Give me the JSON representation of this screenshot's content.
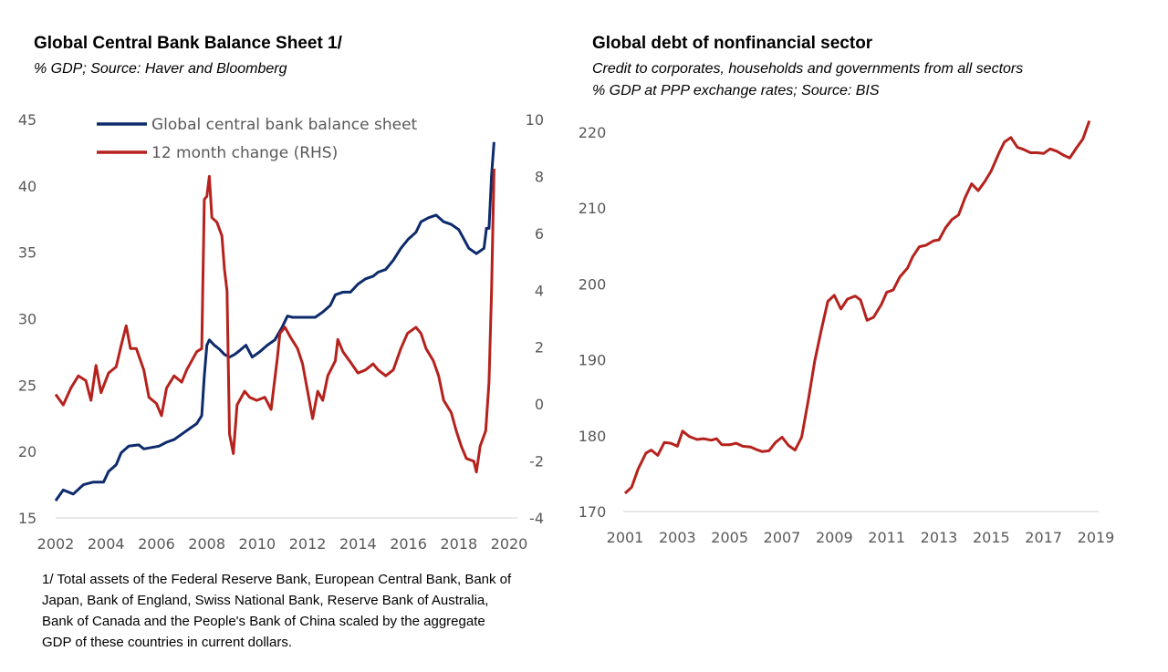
{
  "colors": {
    "balance_sheet": "#0d2a6b",
    "change": "#b5221d",
    "debt": "#b5221d",
    "axis": "#d0d0d0",
    "tick_text": "#595959"
  },
  "left": {
    "title": "Global Central Bank Balance Sheet 1/",
    "subtitle": "% GDP; Source: Haver and Bloomberg",
    "footnote": "1/ Total assets of the Federal Reserve Bank, European Central Bank, Bank of Japan, Bank of England, Swiss National Bank, Reserve Bank of Australia, Bank of Canada and the People's Bank of China scaled by the aggregate GDP of these countries in current dollars."
  },
  "right": {
    "title": "Global debt of nonfinancial sector",
    "subtitle_1": "Credit to corporates, households and governments from all sectors",
    "subtitle_2": "% GDP at PPP exchange rates; Source: BIS"
  },
  "chart_data": [
    {
      "type": "line",
      "title": "Global Central Bank Balance Sheet 1/",
      "legend": "top-left",
      "grid": false,
      "xlim": [
        2002,
        2020
      ],
      "x_ticks": [
        "2002",
        "2004",
        "2006",
        "2008",
        "2010",
        "2012",
        "2014",
        "2016",
        "2018",
        "2020"
      ],
      "ylim_left": [
        15,
        45
      ],
      "y_ticks_left": [
        "15",
        "20",
        "25",
        "30",
        "35",
        "40",
        "45"
      ],
      "ylim_right": [
        -4,
        10
      ],
      "y_ticks_right": [
        "-4",
        "-2",
        "0",
        "2",
        "4",
        "6",
        "8",
        "10"
      ],
      "series": [
        {
          "name": "Global central bank balance sheet",
          "axis": "left",
          "x": [
            2002.0,
            2002.3,
            2002.7,
            2003.1,
            2003.5,
            2003.9,
            2004.1,
            2004.4,
            2004.6,
            2004.9,
            2005.3,
            2005.5,
            2005.8,
            2006.1,
            2006.4,
            2006.7,
            2007.0,
            2007.3,
            2007.6,
            2007.8,
            2007.9,
            2008.0,
            2008.1,
            2008.3,
            2008.5,
            2008.7,
            2008.9,
            2009.1,
            2009.3,
            2009.55,
            2009.8,
            2010.1,
            2010.4,
            2010.7,
            2011.0,
            2011.2,
            2011.4,
            2011.7,
            2012.0,
            2012.3,
            2012.6,
            2012.9,
            2013.1,
            2013.4,
            2013.7,
            2014.0,
            2014.3,
            2014.6,
            2014.8,
            2015.1,
            2015.4,
            2015.7,
            2016.0,
            2016.3,
            2016.5,
            2016.8,
            2017.1,
            2017.4,
            2017.7,
            2018.0,
            2018.2,
            2018.4,
            2018.7,
            2019.0,
            2019.1,
            2019.2,
            2019.3,
            2019.4
          ],
          "y": [
            16.3,
            17.1,
            16.8,
            17.5,
            17.7,
            17.7,
            18.5,
            19.0,
            19.9,
            20.4,
            20.5,
            20.2,
            20.3,
            20.4,
            20.7,
            20.9,
            21.3,
            21.7,
            22.1,
            22.7,
            25.7,
            28.0,
            28.4,
            28.0,
            27.7,
            27.3,
            27.1,
            27.3,
            27.6,
            28.0,
            27.1,
            27.5,
            28.0,
            28.4,
            29.4,
            30.2,
            30.1,
            30.1,
            30.1,
            30.1,
            30.5,
            31.0,
            31.8,
            32.0,
            32.0,
            32.6,
            33.0,
            33.2,
            33.5,
            33.7,
            34.4,
            35.3,
            36.0,
            36.5,
            37.3,
            37.6,
            37.8,
            37.3,
            37.1,
            36.7,
            36.0,
            35.3,
            34.9,
            35.3,
            36.8,
            36.8,
            40.8,
            43.3
          ]
        },
        {
          "name": "12 month change (RHS)",
          "axis": "right",
          "x": [
            2002.0,
            2002.3,
            2002.6,
            2002.9,
            2003.2,
            2003.4,
            2003.6,
            2003.8,
            2004.1,
            2004.4,
            2004.6,
            2004.8,
            2004.97,
            2005.2,
            2005.5,
            2005.7,
            2006.0,
            2006.2,
            2006.4,
            2006.7,
            2007.0,
            2007.2,
            2007.4,
            2007.6,
            2007.8,
            2007.9,
            2008.0,
            2008.1,
            2008.2,
            2008.4,
            2008.6,
            2008.7,
            2008.8,
            2008.9,
            2009.05,
            2009.2,
            2009.5,
            2009.7,
            2009.98,
            2010.3,
            2010.55,
            2010.8,
            2010.9,
            2011.1,
            2011.3,
            2011.6,
            2011.8,
            2012.0,
            2012.2,
            2012.4,
            2012.6,
            2012.8,
            2013.1,
            2013.2,
            2013.4,
            2013.7,
            2014.0,
            2014.3,
            2014.6,
            2014.8,
            2015.1,
            2015.4,
            2015.7,
            2015.96,
            2016.3,
            2016.5,
            2016.7,
            2016.99,
            2017.2,
            2017.4,
            2017.7,
            2017.9,
            2018.1,
            2018.3,
            2018.6,
            2018.7,
            2018.85,
            2019.07,
            2019.2,
            2019.3,
            2019.4
          ],
          "y": [
            0.34,
            -0.03,
            0.56,
            0.99,
            0.82,
            0.13,
            1.36,
            0.4,
            1.09,
            1.31,
            2.06,
            2.75,
            1.95,
            1.95,
            1.2,
            0.24,
            0.02,
            -0.41,
            0.56,
            0.99,
            0.77,
            1.2,
            1.52,
            1.84,
            1.95,
            7.19,
            7.3,
            8.0,
            6.55,
            6.39,
            5.91,
            4.73,
            3.98,
            -1.05,
            -1.74,
            -0.03,
            0.45,
            0.24,
            0.13,
            0.24,
            -0.19,
            1.63,
            2.48,
            2.7,
            2.38,
            1.95,
            1.41,
            0.45,
            -0.51,
            0.45,
            0.13,
            0.99,
            1.52,
            2.27,
            1.84,
            1.47,
            1.09,
            1.2,
            1.41,
            1.2,
            0.99,
            1.2,
            1.95,
            2.48,
            2.7,
            2.48,
            1.95,
            1.52,
            0.99,
            0.13,
            -0.3,
            -0.94,
            -1.48,
            -1.91,
            -2.01,
            -2.39,
            -1.48,
            -0.94,
            0.77,
            3.98,
            8.27
          ]
        }
      ]
    },
    {
      "type": "line",
      "title": "Global debt of nonfinancial sector",
      "grid": false,
      "xlim": [
        2001,
        2019
      ],
      "x_ticks": [
        "2001",
        "2003",
        "2005",
        "2007",
        "2009",
        "2011",
        "2013",
        "2015",
        "2017",
        "2019"
      ],
      "ylim": [
        170,
        220
      ],
      "y_ticks": [
        "170",
        "180",
        "190",
        "200",
        "210",
        "220"
      ],
      "series": [
        {
          "x": [
            2001.0,
            2001.25,
            2001.5,
            2001.8,
            2002.0,
            2002.25,
            2002.5,
            2002.75,
            2003.0,
            2003.2,
            2003.45,
            2003.75,
            2004.0,
            2004.3,
            2004.5,
            2004.7,
            2005.0,
            2005.25,
            2005.5,
            2005.8,
            2006.0,
            2006.25,
            2006.5,
            2006.75,
            2007.0,
            2007.25,
            2007.5,
            2007.75,
            2008.0,
            2008.25,
            2008.5,
            2008.75,
            2009.0,
            2009.25,
            2009.5,
            2009.8,
            2010.0,
            2010.25,
            2010.5,
            2010.8,
            2011.0,
            2011.25,
            2011.5,
            2011.8,
            2012.0,
            2012.25,
            2012.5,
            2012.8,
            2013.0,
            2013.25,
            2013.5,
            2013.75,
            2014.0,
            2014.25,
            2014.5,
            2014.75,
            2015.0,
            2015.3,
            2015.5,
            2015.75,
            2016.0,
            2016.25,
            2016.5,
            2016.75,
            2017.0,
            2017.25,
            2017.5,
            2017.75,
            2018.0,
            2018.25,
            2018.5,
            2018.75
          ],
          "y": [
            172.4,
            173.2,
            175.6,
            177.7,
            178.1,
            177.4,
            179.1,
            179.0,
            178.6,
            180.6,
            179.9,
            179.5,
            179.6,
            179.4,
            179.6,
            178.8,
            178.8,
            179.0,
            178.6,
            178.5,
            178.2,
            177.9,
            178.0,
            179.1,
            179.8,
            178.7,
            178.1,
            179.8,
            184.6,
            189.8,
            193.9,
            197.7,
            198.5,
            196.7,
            198.0,
            198.4,
            197.9,
            195.2,
            195.6,
            197.3,
            198.9,
            199.2,
            200.9,
            202.1,
            203.6,
            204.9,
            205.1,
            205.7,
            205.8,
            207.4,
            208.5,
            209.1,
            211.4,
            213.2,
            212.3,
            213.5,
            214.9,
            217.3,
            218.7,
            219.3,
            218.0,
            217.7,
            217.3,
            217.3,
            217.2,
            217.8,
            217.5,
            217.0,
            216.6,
            217.9,
            219.1,
            221.5
          ]
        }
      ]
    }
  ]
}
